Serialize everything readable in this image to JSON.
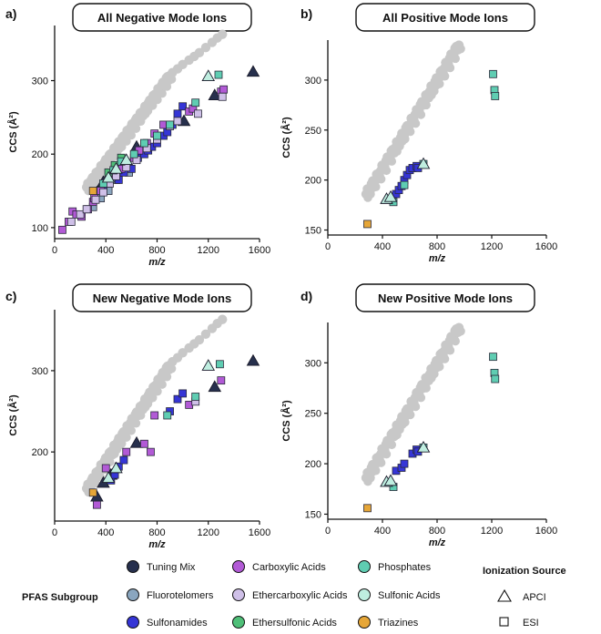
{
  "figure": {
    "legend": {
      "subgroup_title": "PFAS Subgroup",
      "source_title": "Ionization Source",
      "subgroups": [
        {
          "key": "tuning",
          "label": "Tuning Mix",
          "color": "#27304d"
        },
        {
          "key": "fluorotelomers",
          "label": "Fluorotelomers",
          "color": "#8aa6bf"
        },
        {
          "key": "sulfonamides",
          "label": "Sulfonamides",
          "color": "#3535d6"
        },
        {
          "key": "carboxylic",
          "label": "Carboxylic Acids",
          "color": "#b25ad6"
        },
        {
          "key": "ethercarboxylic",
          "label": "Ethercarboxylic Acids",
          "color": "#cfc0e8"
        },
        {
          "key": "ethersulfonic",
          "label": "Ethersulfonic Acids",
          "color": "#4fbf78"
        },
        {
          "key": "phosphates",
          "label": "Phosphates",
          "color": "#5fcdb2"
        },
        {
          "key": "sulfonic",
          "label": "Sulfonic Acids",
          "color": "#bfeee0"
        },
        {
          "key": "triazines",
          "label": "Triazines",
          "color": "#e6a637"
        }
      ],
      "sources": [
        {
          "shape": "triangle",
          "label": "APCI"
        },
        {
          "shape": "square",
          "label": "ESI"
        }
      ]
    }
  },
  "chart_data": [
    {
      "letter": "a)",
      "title": "All Negative Mode Ions",
      "type": "scatter",
      "xlabel": "m/z",
      "ylabel": "CCS (Å²)",
      "xlim": [
        0,
        1600
      ],
      "ylim": [
        85,
        375
      ],
      "xticks": [
        0,
        400,
        800,
        1200,
        1600
      ],
      "yticks": [
        100,
        200,
        300
      ],
      "background_trend": {
        "x_start": 250,
        "x_end": 900,
        "y_start": 155,
        "y_end": 308,
        "tail_x": [
          920,
          960,
          1000,
          1050,
          1090,
          1130,
          1180,
          1230,
          1270,
          1310
        ],
        "tail_y": [
          311,
          316,
          322,
          328,
          333,
          338,
          345,
          352,
          358,
          363
        ]
      },
      "series": [
        {
          "key": "tuning",
          "marker": "triangle",
          "x": [
            330,
            380,
            440,
            520,
            640,
            1010,
            1250,
            1550
          ],
          "y": [
            148,
            162,
            170,
            182,
            210,
            245,
            280,
            312
          ]
        },
        {
          "key": "fluorotelomers",
          "marker": "square",
          "x": [
            300,
            360,
            420,
            480,
            520,
            580
          ],
          "y": [
            128,
            140,
            150,
            165,
            190,
            175
          ]
        },
        {
          "key": "sulfonamides",
          "marker": "square",
          "x": [
            350,
            380,
            420,
            440,
            470,
            500,
            540,
            560,
            600,
            650,
            700,
            730,
            760,
            800,
            850,
            880,
            920,
            960,
            1000
          ],
          "y": [
            150,
            158,
            165,
            172,
            180,
            165,
            175,
            185,
            180,
            195,
            200,
            205,
            210,
            215,
            225,
            230,
            240,
            255,
            265
          ]
        },
        {
          "key": "carboxylic",
          "marker": "square",
          "x": [
            60,
            110,
            140,
            170,
            210,
            260,
            300,
            310,
            360,
            410,
            460,
            520,
            560,
            620,
            660,
            720,
            780,
            850,
            1050,
            1080,
            1300,
            1320
          ],
          "y": [
            97,
            108,
            122,
            118,
            115,
            125,
            135,
            140,
            150,
            162,
            170,
            180,
            188,
            195,
            205,
            215,
            228,
            240,
            258,
            262,
            285,
            288
          ],
          "notes": "approximate"
        },
        {
          "key": "ethercarboxylic",
          "marker": "square",
          "x": [
            130,
            200,
            250,
            320,
            380,
            430,
            480,
            560,
            640,
            720,
            800,
            900,
            960,
            1120,
            1310
          ],
          "y": [
            108,
            118,
            125,
            138,
            148,
            160,
            170,
            182,
            192,
            208,
            220,
            238,
            245,
            255,
            278
          ]
        },
        {
          "key": "ethersulfonic",
          "marker": "square",
          "x": [
            420,
            470,
            520
          ],
          "y": [
            175,
            185,
            195
          ]
        },
        {
          "key": "phosphates",
          "marker": "square",
          "x": [
            380,
            460,
            520,
            620,
            700,
            800,
            900,
            1100,
            1280
          ],
          "y": [
            160,
            178,
            190,
            200,
            215,
            225,
            240,
            270,
            308
          ]
        },
        {
          "key": "sulfonic",
          "marker": "triangle",
          "x": [
            420,
            480,
            560,
            1200
          ],
          "y": [
            168,
            180,
            192,
            306
          ]
        },
        {
          "key": "triazines",
          "marker": "square",
          "x": [
            300
          ],
          "y": [
            150
          ]
        }
      ]
    },
    {
      "letter": "b)",
      "title": "All Positive Mode Ions",
      "type": "scatter",
      "xlabel": "m/z",
      "ylabel": "CCS (Å²)",
      "xlim": [
        0,
        1600
      ],
      "ylim": [
        145,
        340
      ],
      "xticks": [
        0,
        400,
        800,
        1200,
        1600
      ],
      "yticks": [
        150,
        200,
        250,
        300
      ],
      "background_trend": {
        "x_start": 280,
        "x_end": 960,
        "y_start": 186,
        "y_end": 336,
        "tail_x": [],
        "tail_y": []
      },
      "series": [
        {
          "key": "sulfonamides",
          "marker": "square",
          "x": [
            500,
            520,
            540,
            560,
            580,
            600,
            620,
            650,
            660
          ],
          "y": [
            186,
            190,
            194,
            200,
            205,
            210,
            212,
            214,
            212
          ]
        },
        {
          "key": "phosphates",
          "marker": "square",
          "x": [
            480,
            560,
            700,
            1210,
            1220,
            1225
          ],
          "y": [
            178,
            195,
            216,
            306,
            290,
            284
          ]
        },
        {
          "key": "sulfonic",
          "marker": "triangle",
          "x": [
            430,
            460,
            700
          ],
          "y": [
            181,
            183,
            216
          ]
        },
        {
          "key": "triazines",
          "marker": "square",
          "x": [
            290
          ],
          "y": [
            156
          ]
        }
      ]
    },
    {
      "letter": "c)",
      "title": "New Negative Mode Ions",
      "type": "scatter",
      "xlabel": "m/z",
      "ylabel": "CCS (Å²)",
      "xlim": [
        0,
        1600
      ],
      "ylim": [
        115,
        375
      ],
      "xticks": [
        0,
        400,
        800,
        1200,
        1600
      ],
      "yticks": [
        200,
        300
      ],
      "background_trend": {
        "x_start": 250,
        "x_end": 900,
        "y_start": 155,
        "y_end": 308,
        "tail_x": [
          920,
          960,
          1000,
          1050,
          1090,
          1130,
          1180,
          1230,
          1270,
          1310
        ],
        "tail_y": [
          311,
          316,
          322,
          328,
          333,
          338,
          345,
          352,
          358,
          363
        ]
      },
      "series": [
        {
          "key": "tuning",
          "marker": "triangle",
          "x": [
            330,
            380,
            440,
            640,
            1250,
            1550
          ],
          "y": [
            145,
            162,
            172,
            211,
            280,
            312
          ]
        },
        {
          "key": "sulfonamides",
          "marker": "square",
          "x": [
            440,
            470,
            500,
            540,
            900,
            960,
            1000
          ],
          "y": [
            165,
            172,
            182,
            190,
            250,
            265,
            272
          ]
        },
        {
          "key": "carboxylic",
          "marker": "square",
          "x": [
            330,
            400,
            560,
            700,
            750,
            780,
            1050,
            1300
          ],
          "y": [
            135,
            180,
            200,
            210,
            200,
            245,
            258,
            288
          ]
        },
        {
          "key": "ethercarboxylic",
          "marker": "square",
          "x": [
            1100
          ],
          "y": [
            262
          ]
        },
        {
          "key": "phosphates",
          "marker": "square",
          "x": [
            880,
            1100,
            1290
          ],
          "y": [
            245,
            268,
            308
          ]
        },
        {
          "key": "sulfonic",
          "marker": "triangle",
          "x": [
            420,
            480,
            1200
          ],
          "y": [
            168,
            180,
            306
          ]
        },
        {
          "key": "triazines",
          "marker": "square",
          "x": [
            300
          ],
          "y": [
            150
          ]
        }
      ]
    },
    {
      "letter": "d)",
      "title": "New Positive Mode Ions",
      "type": "scatter",
      "xlabel": "m/z",
      "ylabel": "CCS (Å²)",
      "xlim": [
        0,
        1600
      ],
      "ylim": [
        145,
        340
      ],
      "xticks": [
        0,
        400,
        800,
        1200,
        1600
      ],
      "yticks": [
        150,
        200,
        250,
        300
      ],
      "background_trend": {
        "x_start": 280,
        "x_end": 960,
        "y_start": 186,
        "y_end": 336,
        "tail_x": [],
        "tail_y": []
      },
      "series": [
        {
          "key": "sulfonamides",
          "marker": "square",
          "x": [
            500,
            540,
            560,
            620,
            650,
            660
          ],
          "y": [
            193,
            196,
            200,
            210,
            214,
            212
          ]
        },
        {
          "key": "phosphates",
          "marker": "square",
          "x": [
            480,
            700,
            1210,
            1220,
            1225
          ],
          "y": [
            177,
            216,
            306,
            290,
            284
          ]
        },
        {
          "key": "sulfonic",
          "marker": "triangle",
          "x": [
            430,
            460,
            700
          ],
          "y": [
            182,
            183,
            216
          ]
        },
        {
          "key": "triazines",
          "marker": "square",
          "x": [
            290
          ],
          "y": [
            156
          ]
        }
      ]
    }
  ]
}
